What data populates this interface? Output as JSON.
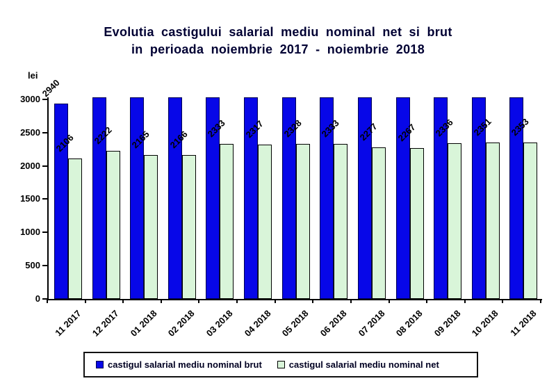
{
  "title": {
    "line1": "Evolutia castigului salarial mediu nominal net si brut",
    "line2": "in perioada noiembrie 2017 - noiembrie 2018"
  },
  "y_axis": {
    "unit_label": "lei",
    "ticks": [
      3000,
      2500,
      2000,
      1500,
      1000,
      500,
      0
    ]
  },
  "chart_data": {
    "type": "bar",
    "title": "Evolutia castigului salarial mediu nominal net si brut in perioada noiembrie 2017 - noiembrie 2018",
    "categories": [
      "11 2017",
      "12 2017",
      "01 2018",
      "02 2018",
      "03 2018",
      "04 2018",
      "05 2018",
      "06 2018",
      "07 2018",
      "08 2018",
      "09 2018",
      "10 2018",
      "11 2018"
    ],
    "series": [
      {
        "name": "castigul salarial mediu nominal brut",
        "color": "#0707e8",
        "values": [
          2940,
          null,
          null,
          null,
          null,
          null,
          null,
          null,
          null,
          null,
          null,
          null,
          null
        ],
        "clipped_bars_drawn_to_axis_top": true
      },
      {
        "name": "castigul salarial mediu nominal net",
        "color": "#d9f5d9",
        "values": [
          2106,
          2222,
          2165,
          2166,
          2333,
          2317,
          2328,
          2333,
          2277,
          2267,
          2336,
          2351,
          2353
        ]
      }
    ],
    "ylabel": "lei",
    "ylim": [
      0,
      3030
    ],
    "yticks": [
      0,
      500,
      1000,
      1500,
      2000,
      2500,
      3000
    ],
    "grid": false,
    "legend_position": "bottom",
    "bar_value_labels_rotation_deg": 45,
    "x_tick_labels_rotation_deg": 45
  },
  "legend": {
    "items": [
      {
        "label": "castigul salarial mediu nominal brut",
        "color": "#0707e8"
      },
      {
        "label": "castigul salarial mediu nominal net",
        "color": "#d9f5d9"
      }
    ]
  },
  "colors": {
    "background": "#ffffff",
    "title_text": "#000033",
    "axis": "#000000",
    "brut_bar": "#0707e8",
    "brut_bar_border": "#000050",
    "net_bar": "#d9f5d9",
    "net_bar_border": "#000000",
    "legend_border": "#111111"
  }
}
